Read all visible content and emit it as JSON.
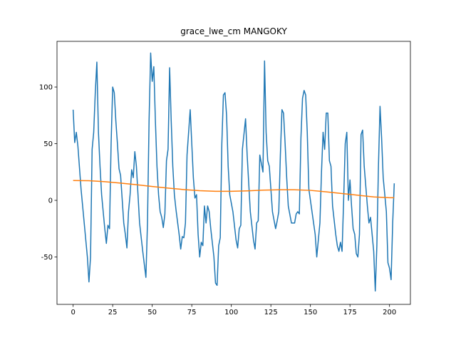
{
  "chart_data": {
    "type": "line",
    "title": "grace_lwe_cm MANGOKY",
    "xlim": [
      -10.2,
      213.2
    ],
    "ylim": [
      -91.8,
      140.3
    ],
    "xticks": [
      0,
      25,
      50,
      75,
      100,
      125,
      150,
      175,
      200
    ],
    "yticks": [
      -50,
      0,
      50,
      100
    ],
    "series": [
      {
        "color": "#1f77b4",
        "x": [
          0,
          1,
          2,
          3,
          5,
          7,
          9,
          10,
          11,
          12,
          13,
          14,
          15,
          16,
          17,
          18,
          20,
          21,
          22,
          23,
          24,
          25,
          26,
          27,
          28,
          29,
          30,
          32,
          33,
          34,
          35,
          36,
          37,
          38,
          39,
          40,
          41,
          42,
          44,
          46,
          47,
          48,
          49,
          50,
          51,
          52,
          53,
          54,
          55,
          56,
          57,
          58,
          59,
          60,
          61,
          62,
          63,
          64,
          65,
          67,
          68,
          69,
          70,
          71,
          72,
          74,
          75,
          76,
          77,
          78,
          79,
          80,
          81,
          82,
          83,
          84,
          85,
          86,
          87,
          89,
          90,
          91,
          92,
          93,
          94,
          95,
          96,
          97,
          98,
          99,
          101,
          103,
          104,
          105,
          106,
          107,
          109,
          110,
          111,
          112,
          114,
          115,
          116,
          117,
          118,
          120,
          121,
          122,
          123,
          124,
          126,
          128,
          129,
          130,
          131,
          132,
          133,
          134,
          135,
          136,
          138,
          140,
          141,
          142,
          143,
          144,
          145,
          146,
          147,
          148,
          149,
          152,
          153,
          154,
          156,
          157,
          158,
          159,
          160,
          161,
          162,
          163,
          164,
          166,
          167,
          168,
          169,
          170,
          171,
          172,
          173,
          174,
          175,
          176,
          177,
          178,
          179,
          180,
          181,
          182,
          183,
          184,
          186,
          187,
          188,
          189,
          190,
          191,
          192,
          193,
          194,
          195,
          196,
          197,
          198,
          199,
          200,
          201,
          202,
          203
        ],
        "values": [
          80,
          51,
          60,
          48,
          10,
          -20,
          -50,
          -72,
          -50,
          45,
          60,
          95,
          122,
          60,
          30,
          5,
          -25,
          -38,
          -22,
          -25,
          50,
          100,
          95,
          70,
          50,
          28,
          22,
          -20,
          -30,
          -42,
          -10,
          5,
          27,
          20,
          43,
          30,
          5,
          -20,
          -45,
          -68,
          -20,
          70,
          130,
          105,
          118,
          70,
          30,
          5,
          -10,
          -15,
          -24,
          -12,
          35,
          45,
          117,
          70,
          30,
          5,
          -8,
          -30,
          -43,
          -32,
          -33,
          -20,
          40,
          80,
          50,
          20,
          2,
          5,
          -30,
          -50,
          -37,
          -40,
          -5,
          -20,
          -5,
          -10,
          -25,
          -50,
          -73,
          -75,
          -40,
          -33,
          50,
          93,
          95,
          75,
          30,
          5,
          -10,
          -35,
          -42,
          -25,
          -22,
          45,
          72,
          40,
          15,
          -10,
          -35,
          -43,
          -20,
          -18,
          40,
          25,
          123,
          60,
          35,
          30,
          -10,
          -25,
          -18,
          -10,
          40,
          80,
          77,
          50,
          20,
          -5,
          -20,
          -20,
          -12,
          -10,
          -12,
          55,
          90,
          97,
          93,
          60,
          10,
          -20,
          -30,
          -50,
          -20,
          25,
          60,
          45,
          77,
          77,
          35,
          30,
          -5,
          -30,
          -40,
          -45,
          -37,
          -45,
          0,
          50,
          60,
          0,
          18,
          -5,
          -25,
          -30,
          -47,
          -50,
          -30,
          58,
          62,
          30,
          -5,
          -20,
          -15,
          -30,
          -45,
          -80,
          -40,
          30,
          83,
          55,
          20,
          5,
          -10,
          -55,
          -60,
          -70,
          -20,
          15
        ]
      },
      {
        "color": "#ff7f0e",
        "x": [
          0,
          10,
          20,
          30,
          40,
          50,
          60,
          70,
          80,
          90,
          100,
          110,
          120,
          130,
          140,
          150,
          160,
          170,
          180,
          190,
          200,
          203
        ],
        "values": [
          17.5,
          17.3,
          16.5,
          15.2,
          13.8,
          12.2,
          10.8,
          9.5,
          8.5,
          8,
          8,
          8.4,
          9,
          9.3,
          9.3,
          8.8,
          7.5,
          6,
          4.5,
          3,
          2.3,
          2.3
        ]
      }
    ]
  }
}
